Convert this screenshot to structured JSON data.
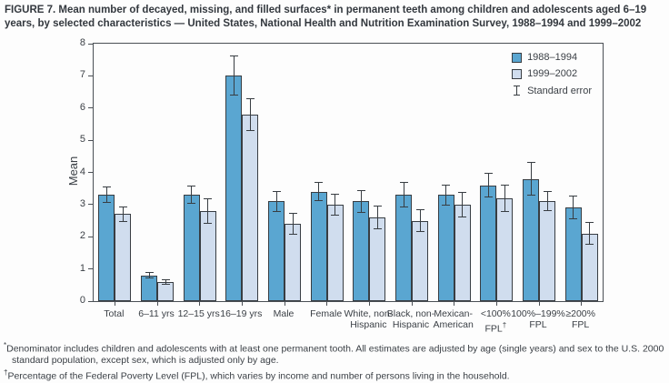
{
  "figure": {
    "title": "FIGURE 7. Mean number of decayed, missing, and filled surfaces* in permanent teeth among children and adolescents aged 6–19 years, by selected characteristics — United States, National Health and Nutrition Examination Survey, 1988–1994 and 1999–2002"
  },
  "chart_data": {
    "type": "bar",
    "title": "",
    "xlabel": "",
    "ylabel": "Mean",
    "ylim": [
      0,
      8
    ],
    "ytick_step": 1,
    "yticks": [
      0,
      1,
      2,
      3,
      4,
      5,
      6,
      7,
      8
    ],
    "grid": false,
    "legend_position": "top-right",
    "standard_error_label": "Standard error",
    "categories": [
      "Total",
      "6–11 yrs",
      "12–15 yrs",
      "16–19 yrs",
      "Male",
      "Female",
      "White, non-Hispanic",
      "Black, non-Hispanic",
      "Mexican-American",
      "<100% FPL†",
      "100%–199% FPL",
      "≥200% FPL"
    ],
    "category_label_lines": [
      [
        "Total"
      ],
      [
        "6–11 yrs"
      ],
      [
        "12–15 yrs"
      ],
      [
        "16–19 yrs"
      ],
      [
        "Male"
      ],
      [
        "Female"
      ],
      [
        "White, non-",
        "Hispanic"
      ],
      [
        "Black, non-",
        "Hispanic"
      ],
      [
        "Mexican-",
        "American"
      ],
      [
        "<100%",
        "FPL†"
      ],
      [
        "100%–199%",
        "FPL"
      ],
      [
        "≥200%",
        "FPL"
      ]
    ],
    "series": [
      {
        "name": "1988–1994",
        "color": "#5aa6d1",
        "values": [
          3.3,
          0.8,
          3.3,
          7.0,
          3.1,
          3.4,
          3.1,
          3.3,
          3.3,
          3.6,
          3.8,
          2.9
        ],
        "standard_errors": [
          0.25,
          0.1,
          0.28,
          0.62,
          0.33,
          0.3,
          0.35,
          0.4,
          0.33,
          0.38,
          0.52,
          0.37
        ]
      },
      {
        "name": "1999–2002",
        "color": "#d0ddee",
        "values": [
          2.7,
          0.6,
          2.8,
          5.8,
          2.4,
          3.0,
          2.6,
          2.5,
          3.0,
          3.2,
          3.1,
          2.1
        ],
        "standard_errors": [
          0.25,
          0.08,
          0.4,
          0.5,
          0.33,
          0.33,
          0.36,
          0.35,
          0.39,
          0.42,
          0.31,
          0.35
        ]
      }
    ]
  },
  "footnotes": [
    {
      "marker": "*",
      "text": "Denominator includes children and adolescents with at least one permanent tooth. All estimates are adjusted by age (single years) and sex to the U.S. 2000 standard population, except sex, which is adjusted only by age."
    },
    {
      "marker": "†",
      "text": "Percentage of the Federal Poverty Level (FPL), which varies by income and number of persons living in the household."
    }
  ]
}
